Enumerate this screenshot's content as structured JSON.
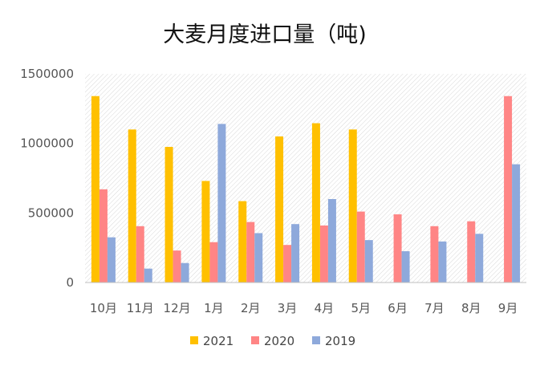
{
  "chart_data": {
    "type": "bar",
    "title": "大麦月度进口量（吨)",
    "xlabel": "",
    "ylabel": "",
    "ylim": [
      0,
      1500000
    ],
    "yticks": [
      "0",
      "500000",
      "1000000",
      "1500000"
    ],
    "categories": [
      "10月",
      "11月",
      "12月",
      "1月",
      "2月",
      "3月",
      "4月",
      "5月",
      "6月",
      "7月",
      "8月",
      "9月"
    ],
    "series": [
      {
        "name": "2021",
        "color": "#FFC000",
        "values": [
          1340000,
          1100000,
          975000,
          730000,
          585000,
          1050000,
          1145000,
          1100000,
          null,
          null,
          null,
          null
        ]
      },
      {
        "name": "2020",
        "color": "#FF8585",
        "values": [
          670000,
          405000,
          230000,
          290000,
          435000,
          270000,
          410000,
          510000,
          490000,
          405000,
          440000,
          1340000
        ]
      },
      {
        "name": "2019",
        "color": "#8EA9DB",
        "values": [
          325000,
          100000,
          140000,
          1140000,
          355000,
          420000,
          600000,
          305000,
          225000,
          295000,
          350000,
          850000
        ]
      }
    ],
    "grid": false,
    "legend_position": "bottom",
    "background_pattern": "diagonal-hatch"
  }
}
